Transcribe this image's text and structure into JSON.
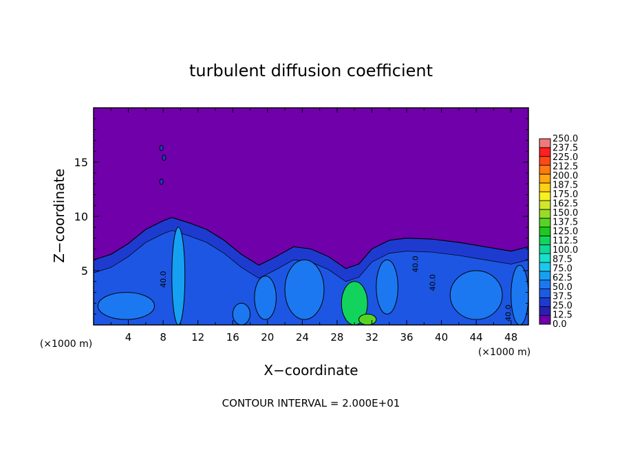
{
  "chart_data": {
    "type": "heatmap",
    "title": "turbulent diffusion coefficient",
    "xlabel": "X−coordinate",
    "ylabel": "Z−coordinate",
    "x_unit_left": "(×1000 m)",
    "x_unit_right": "(×1000 m)",
    "footer": "CONTOUR INTERVAL = 2.000E+01",
    "xlim": [
      0,
      50
    ],
    "ylim": [
      0,
      20
    ],
    "x_ticks": [
      4,
      8,
      12,
      16,
      20,
      24,
      28,
      32,
      36,
      40,
      44,
      48
    ],
    "y_ticks": [
      5,
      10,
      15
    ],
    "contour_interval": 20,
    "contour_labels": [
      {
        "x": 8.3,
        "z": 4.2,
        "text": "40.0"
      },
      {
        "x": 37.3,
        "z": 5.6,
        "text": "40.0"
      },
      {
        "x": 39.3,
        "z": 3.9,
        "text": "40.0"
      },
      {
        "x": 48.0,
        "z": 1.1,
        "text": "40.0"
      }
    ],
    "colorbar": {
      "levels": [
        0.0,
        12.5,
        25.0,
        37.5,
        50.0,
        62.5,
        75.0,
        87.5,
        100.0,
        112.5,
        125.0,
        137.5,
        150.0,
        162.5,
        175.0,
        187.5,
        200.0,
        212.5,
        225.0,
        237.5,
        250.0
      ],
      "labels": [
        "0.0",
        "12.5",
        "25.0",
        "37.5",
        "50.0",
        "62.5",
        "75.0",
        "87.5",
        "100.0",
        "112.5",
        "125.0",
        "137.5",
        "150.0",
        "162.5",
        "175.0",
        "187.5",
        "200.0",
        "212.5",
        "225.0",
        "237.5",
        "250.0"
      ],
      "colors": [
        "#7000aa",
        "#2a1fb2",
        "#1e3bd0",
        "#1d5ae6",
        "#1c78f0",
        "#16a0f2",
        "#1cc8ee",
        "#19e0c8",
        "#10d79a",
        "#12d45c",
        "#1ec81e",
        "#56d424",
        "#98dc28",
        "#d0e82a",
        "#f8f020",
        "#ffd014",
        "#ffa810",
        "#ff7a10",
        "#ff4818",
        "#ff2020",
        "#f07a7a"
      ]
    },
    "field": {
      "background_value": 0,
      "boundary_layer": [
        {
          "x": 0,
          "top": 6.0
        },
        {
          "x": 2,
          "top": 6.5
        },
        {
          "x": 4,
          "top": 7.5
        },
        {
          "x": 6,
          "top": 8.8
        },
        {
          "x": 8,
          "top": 9.6
        },
        {
          "x": 9,
          "top": 9.9
        },
        {
          "x": 11,
          "top": 9.4
        },
        {
          "x": 13,
          "top": 8.8
        },
        {
          "x": 15,
          "top": 7.8
        },
        {
          "x": 17,
          "top": 6.5
        },
        {
          "x": 19,
          "top": 5.5
        },
        {
          "x": 21,
          "top": 6.3
        },
        {
          "x": 23,
          "top": 7.2
        },
        {
          "x": 25,
          "top": 7.0
        },
        {
          "x": 27,
          "top": 6.3
        },
        {
          "x": 29,
          "top": 5.2
        },
        {
          "x": 30.5,
          "top": 5.6
        },
        {
          "x": 32,
          "top": 7.0
        },
        {
          "x": 34,
          "top": 7.8
        },
        {
          "x": 36,
          "top": 8.0
        },
        {
          "x": 39,
          "top": 7.9
        },
        {
          "x": 42,
          "top": 7.6
        },
        {
          "x": 45,
          "top": 7.2
        },
        {
          "x": 48,
          "top": 6.8
        },
        {
          "x": 50,
          "top": 7.2
        }
      ],
      "interior_value": 30,
      "plumes": [
        {
          "x": [
            0.5,
            7
          ],
          "z": [
            0.5,
            3.0
          ],
          "value": 55
        },
        {
          "x": [
            9,
            10.5
          ],
          "z": [
            0,
            9
          ],
          "value": 65
        },
        {
          "x": [
            16,
            18
          ],
          "z": [
            0,
            2
          ],
          "value": 60
        },
        {
          "x": [
            18.5,
            21
          ],
          "z": [
            0.5,
            4.5
          ],
          "value": 58
        },
        {
          "x": [
            22,
            26.5
          ],
          "z": [
            0.5,
            6
          ],
          "value": 55
        },
        {
          "x": [
            28.5,
            31.5
          ],
          "z": [
            0,
            4
          ],
          "value": 120
        },
        {
          "x": [
            30.5,
            32.5
          ],
          "z": [
            0,
            1
          ],
          "value": 140
        },
        {
          "x": [
            32.5,
            35
          ],
          "z": [
            1,
            6
          ],
          "value": 62
        },
        {
          "x": [
            41,
            47
          ],
          "z": [
            0.5,
            5
          ],
          "value": 60
        },
        {
          "x": [
            48,
            50
          ],
          "z": [
            0,
            5.5
          ],
          "value": 58
        }
      ],
      "spots": [
        {
          "x": 7.8,
          "z": 16.3
        },
        {
          "x": 7.8,
          "z": 13.2
        },
        {
          "x": 8.1,
          "z": 15.4
        }
      ]
    }
  }
}
